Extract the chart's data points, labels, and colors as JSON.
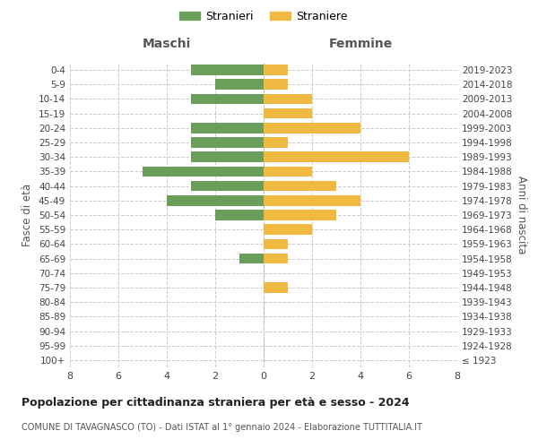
{
  "age_groups": [
    "100+",
    "95-99",
    "90-94",
    "85-89",
    "80-84",
    "75-79",
    "70-74",
    "65-69",
    "60-64",
    "55-59",
    "50-54",
    "45-49",
    "40-44",
    "35-39",
    "30-34",
    "25-29",
    "20-24",
    "15-19",
    "10-14",
    "5-9",
    "0-4"
  ],
  "birth_years": [
    "≤ 1923",
    "1924-1928",
    "1929-1933",
    "1934-1938",
    "1939-1943",
    "1944-1948",
    "1949-1953",
    "1954-1958",
    "1959-1963",
    "1964-1968",
    "1969-1973",
    "1974-1978",
    "1979-1983",
    "1984-1988",
    "1989-1993",
    "1994-1998",
    "1999-2003",
    "2004-2008",
    "2009-2013",
    "2014-2018",
    "2019-2023"
  ],
  "maschi": [
    0,
    0,
    0,
    0,
    0,
    0,
    0,
    1,
    0,
    0,
    2,
    4,
    3,
    5,
    3,
    3,
    3,
    0,
    3,
    2,
    3
  ],
  "femmine": [
    0,
    0,
    0,
    0,
    0,
    1,
    0,
    1,
    1,
    2,
    3,
    4,
    3,
    2,
    6,
    1,
    4,
    2,
    2,
    1,
    1
  ],
  "male_color": "#6a9e5a",
  "female_color": "#f0b942",
  "title": "Popolazione per cittadinanza straniera per età e sesso - 2024",
  "subtitle": "COMUNE DI TAVAGNASCO (TO) - Dati ISTAT al 1° gennaio 2024 - Elaborazione TUTTITALIA.IT",
  "xlabel_left": "Maschi",
  "xlabel_right": "Femmine",
  "ylabel_left": "Fasce di età",
  "ylabel_right": "Anni di nascita",
  "legend_male": "Stranieri",
  "legend_female": "Straniere",
  "xlim": 8,
  "grid_color": "#cccccc",
  "background_color": "#ffffff",
  "text_color": "#555555"
}
